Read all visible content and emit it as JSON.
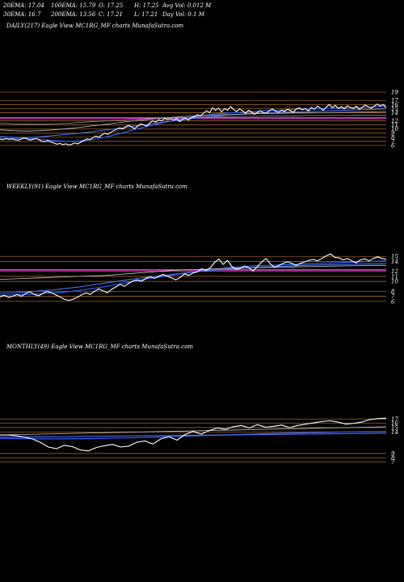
{
  "header": {
    "ema20": "20EMA: 17.04",
    "ema100": "100EMA: 15.79",
    "open": "O: 17.25",
    "high": "H: 17.25",
    "avgvol": "Avg Vol: 0.012  M",
    "ema30": "30EMA: 16.7",
    "ema200": "200EMA: 13.56",
    "close": "C: 17.21",
    "low": "L: 17.21",
    "dayvol": "Day Vol: 0.1  M"
  },
  "colors": {
    "background": "#000000",
    "price": "#ffffff",
    "ema_blue": "#3060ff",
    "ema_white": "#c8c8c8",
    "level_lines": "#b87333",
    "magenta": "#ff33ff"
  },
  "chart_data": [
    {
      "type": "line",
      "title": "DAILY(217) Eagle   View  MC1RG_MF charts MunafaSutra.com",
      "y_ticks": [
        "19",
        "17",
        "16",
        "15",
        "14",
        "12",
        "11",
        "10",
        "9",
        "8",
        "7",
        "6"
      ],
      "ylim": [
        5,
        20
      ],
      "magenta_level": 12.7,
      "series": [
        {
          "role": "price",
          "values": [
            7.6,
            7.4,
            7.7,
            7.5,
            7.6,
            7.4,
            7.3,
            7.5,
            7.8,
            7.6,
            7.3,
            7.5,
            7.7,
            7.4,
            7.0,
            6.9,
            7.2,
            6.8,
            6.6,
            6.3,
            6.5,
            6.2,
            6.4,
            6.1,
            6.3,
            6.6,
            6.4,
            6.8,
            7.2,
            7.6,
            7.4,
            7.9,
            8.3,
            8.0,
            8.6,
            9.0,
            8.7,
            9.2,
            9.6,
            10.0,
            10.3,
            10.0,
            10.6,
            10.9,
            10.5,
            10.1,
            10.7,
            11.3,
            11.0,
            10.7,
            11.5,
            12.0,
            11.7,
            12.3,
            12.0,
            12.6,
            12.3,
            12.5,
            12.2,
            12.6,
            11.8,
            12.4,
            12.6,
            12.2,
            12.8,
            13.1,
            13.5,
            13.2,
            13.9,
            14.5,
            14.0,
            15.2,
            14.6,
            15.1,
            14.2,
            15.0,
            14.6,
            15.5,
            14.8,
            14.3,
            14.9,
            14.5,
            13.8,
            14.6,
            14.2,
            13.6,
            14.1,
            14.5,
            14.0,
            13.9,
            14.5,
            14.9,
            14.4,
            14.1,
            14.6,
            14.3,
            14.8,
            14.5,
            14.1,
            14.9,
            15.2,
            14.7,
            15.0,
            14.4,
            15.3,
            14.8,
            15.6,
            15.1,
            14.6,
            15.4,
            16.0,
            15.2,
            15.8,
            15.0,
            15.5,
            14.9,
            15.7,
            15.3,
            15.0,
            15.6,
            14.8,
            15.3,
            15.9,
            15.4,
            15.1,
            15.6,
            16.1,
            15.6,
            16.0,
            15.2
          ]
        },
        {
          "role": "ema_short",
          "values": [
            8.2,
            8.0,
            7.8,
            7.5,
            7.2,
            7.0,
            7.1,
            7.5,
            8.1,
            8.9,
            9.8,
            10.6,
            11.4,
            12.1,
            12.7,
            13.2,
            13.6,
            13.9,
            14.1,
            14.3,
            14.5,
            14.6,
            14.8,
            14.9,
            15.0,
            15.1,
            15.2,
            15.3,
            15.4,
            15.5
          ]
        },
        {
          "role": "ema_long",
          "values": [
            7.5,
            7.7,
            7.9,
            8.1,
            8.4,
            8.7,
            9.0,
            9.4,
            9.8,
            10.2,
            10.7,
            11.1,
            11.6,
            12.0,
            12.4,
            12.8,
            13.1,
            13.4,
            13.6,
            13.8,
            14.0,
            14.1,
            14.2,
            14.3,
            14.4,
            14.5,
            14.6,
            14.7,
            14.8,
            14.9
          ]
        },
        {
          "role": "ema_white",
          "values": [
            9.8,
            9.6,
            9.5,
            9.6,
            9.8,
            10.1,
            10.4,
            10.8,
            11.2,
            11.6,
            12.0,
            12.3,
            12.6,
            12.9,
            13.1,
            13.3,
            13.4,
            13.5,
            13.6,
            13.7,
            13.8,
            13.85,
            13.9,
            13.95,
            14.0,
            14.05,
            14.1,
            14.15,
            14.2,
            14.25
          ]
        },
        {
          "role": "ema_white2",
          "values": [
            11.5,
            11.3,
            11.2,
            11.2,
            11.3,
            11.4,
            11.6,
            11.8,
            12.0,
            12.2,
            12.4,
            12.5,
            12.6,
            12.7,
            12.8,
            12.9,
            13.0,
            13.0,
            13.1,
            13.1,
            13.2,
            13.2,
            13.2,
            13.3,
            13.3,
            13.3,
            13.3,
            13.4,
            13.4,
            13.4
          ]
        }
      ]
    },
    {
      "type": "line",
      "title": "WEEKLY(91) Eagle   View  MC1RG_MF charts MunafaSutra.com",
      "y_ticks": [
        "15",
        "14",
        "12",
        "11",
        "10",
        "8",
        "7",
        "6"
      ],
      "ylim": [
        5,
        16
      ],
      "magenta_level": 12.3,
      "series": [
        {
          "role": "price",
          "values": [
            6.9,
            7.2,
            6.8,
            7.0,
            7.4,
            7.0,
            7.6,
            7.9,
            7.4,
            7.1,
            7.6,
            8.0,
            7.7,
            7.3,
            6.9,
            6.4,
            6.2,
            6.4,
            6.8,
            7.3,
            7.7,
            7.4,
            8.0,
            8.5,
            8.1,
            7.7,
            8.4,
            8.9,
            9.4,
            9.0,
            9.6,
            10.1,
            10.3,
            10.0,
            10.6,
            10.9,
            10.6,
            11.0,
            11.4,
            11.0,
            10.7,
            10.3,
            10.8,
            11.5,
            11.2,
            11.7,
            11.9,
            12.5,
            12.2,
            12.7,
            13.8,
            14.5,
            13.4,
            14.2,
            13.0,
            12.4,
            12.6,
            13.1,
            12.7,
            12.1,
            13.0,
            13.9,
            14.6,
            13.5,
            12.8,
            13.2,
            13.6,
            13.9,
            13.6,
            13.2,
            13.6,
            13.9,
            14.2,
            14.4,
            14.1,
            14.6,
            15.1,
            15.5,
            14.8,
            14.7,
            14.3,
            14.6,
            14.1,
            13.7,
            14.3,
            14.5,
            14.1,
            14.6,
            14.9,
            14.6,
            14.4
          ]
        },
        {
          "role": "ema_short",
          "values": [
            7.2,
            7.3,
            7.4,
            7.5,
            7.7,
            7.9,
            8.2,
            8.6,
            9.0,
            9.5,
            10.0,
            10.5,
            10.9,
            11.3,
            11.7,
            12.1,
            12.4,
            12.7,
            12.9,
            13.1,
            13.2,
            13.3,
            13.4,
            13.5,
            13.6,
            13.7,
            13.8,
            13.9,
            14.0,
            14.1
          ]
        },
        {
          "role": "ema_long",
          "values": [
            7.6,
            7.7,
            7.9,
            8.1,
            8.3,
            8.6,
            8.9,
            9.3,
            9.7,
            10.1,
            10.5,
            10.8,
            11.1,
            11.4,
            11.7,
            12.0,
            12.2,
            12.4,
            12.6,
            12.8,
            12.9,
            13.0,
            13.1,
            13.2,
            13.3,
            13.35,
            13.4,
            13.45,
            13.5,
            13.55
          ]
        },
        {
          "role": "ema_white",
          "values": [
            10.4,
            10.5,
            10.6,
            10.7,
            10.8,
            10.9,
            11.0,
            11.1,
            11.2,
            11.4,
            11.6,
            11.8,
            12.0,
            12.2,
            12.3,
            12.4,
            12.5,
            12.6,
            12.7,
            12.75,
            12.8,
            12.85,
            12.9,
            12.95,
            13.0,
            13.05,
            13.1,
            13.15,
            13.2,
            13.2
          ]
        }
      ]
    },
    {
      "type": "line",
      "title": "MONTHLY(49) Eagle   View  MC1RG_MF charts MunafaSutra.com",
      "y_ticks": [
        "17",
        "16",
        "15",
        "14",
        "9",
        "8",
        "7"
      ],
      "ylim": [
        6,
        18
      ],
      "magenta_level": null,
      "series": [
        {
          "role": "price",
          "values": [
            13.3,
            13.3,
            13.1,
            12.8,
            12.4,
            11.6,
            10.5,
            10.1,
            10.9,
            10.6,
            9.8,
            9.6,
            10.4,
            10.8,
            11.1,
            10.5,
            10.7,
            11.6,
            11.9,
            11.2,
            12.4,
            12.9,
            12.1,
            13.4,
            14.1,
            13.5,
            14.3,
            14.9,
            14.6,
            15.2,
            15.5,
            14.9,
            15.7,
            15.1,
            15.3,
            15.6,
            15.0,
            15.5,
            15.8,
            16.1,
            16.4,
            16.6,
            16.3,
            15.8,
            16.0,
            16.3,
            16.9,
            17.1,
            17.2
          ]
        },
        {
          "role": "ema_short",
          "values": [
            12.5,
            12.45,
            12.4,
            12.4,
            12.45,
            12.5,
            12.6,
            12.7,
            12.85,
            13.0,
            13.15,
            13.3,
            13.45,
            13.6,
            13.7,
            13.8,
            13.9,
            14.0,
            14.05,
            14.1
          ]
        },
        {
          "role": "ema_long",
          "values": [
            12.8,
            12.8,
            12.85,
            12.9,
            12.95,
            13.0,
            13.05,
            13.1,
            13.15,
            13.2,
            13.25,
            13.3,
            13.35,
            13.4,
            13.45,
            13.5,
            13.55,
            13.6,
            13.65,
            13.7
          ]
        },
        {
          "role": "ema_white",
          "values": [
            13.3,
            13.4,
            13.5,
            13.6,
            13.7,
            13.8,
            13.9,
            14.0,
            14.1,
            14.2,
            14.3,
            14.4,
            14.5,
            14.6,
            14.7,
            14.8,
            14.9,
            15.0,
            15.1,
            15.2
          ]
        }
      ]
    }
  ]
}
